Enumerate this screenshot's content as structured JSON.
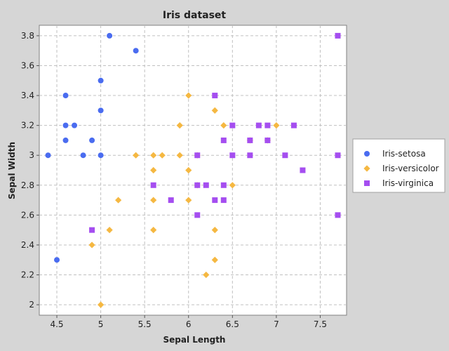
{
  "chart_data": {
    "type": "scatter",
    "title": "Iris dataset",
    "xlabel": "Sepal Length",
    "ylabel": "Sepal Width",
    "xlim": [
      4.3,
      7.8
    ],
    "ylim": [
      1.93,
      3.87
    ],
    "xticks": [
      4.5,
      5.0,
      5.5,
      6.0,
      6.5,
      7.0,
      7.5
    ],
    "xtick_labels": [
      "4.5",
      "5",
      "5.5",
      "6",
      "6.5",
      "7",
      "7.5"
    ],
    "yticks": [
      2.0,
      2.2,
      2.4,
      2.6,
      2.8,
      3.0,
      3.2,
      3.4,
      3.6,
      3.8
    ],
    "ytick_labels": [
      "2",
      "2.2",
      "2.4",
      "2.6",
      "2.8",
      "3",
      "3.2",
      "3.4",
      "3.6",
      "3.8"
    ],
    "grid": true,
    "legend_position": "right",
    "series": [
      {
        "name": "Iris-setosa",
        "marker": "circle",
        "color": "#4a6cf0",
        "points": [
          [
            5.1,
            3.8
          ],
          [
            5.4,
            3.7
          ],
          [
            5.0,
            3.5
          ],
          [
            4.6,
            3.4
          ],
          [
            5.0,
            3.3
          ],
          [
            4.6,
            3.2
          ],
          [
            4.7,
            3.2
          ],
          [
            4.6,
            3.1
          ],
          [
            4.9,
            3.1
          ],
          [
            4.4,
            3.0
          ],
          [
            4.8,
            3.0
          ],
          [
            5.0,
            3.0
          ],
          [
            4.5,
            2.3
          ]
        ]
      },
      {
        "name": "Iris-versicolor",
        "marker": "diamond",
        "color": "#f5b842",
        "points": [
          [
            6.0,
            3.4
          ],
          [
            6.3,
            3.3
          ],
          [
            5.9,
            3.2
          ],
          [
            6.4,
            3.2
          ],
          [
            7.0,
            3.2
          ],
          [
            6.7,
            3.1
          ],
          [
            6.9,
            3.1
          ],
          [
            5.4,
            3.0
          ],
          [
            5.6,
            3.0
          ],
          [
            5.7,
            3.0
          ],
          [
            5.9,
            3.0
          ],
          [
            6.1,
            3.0
          ],
          [
            5.6,
            2.9
          ],
          [
            6.0,
            2.9
          ],
          [
            6.1,
            2.8
          ],
          [
            6.5,
            2.8
          ],
          [
            5.2,
            2.7
          ],
          [
            5.6,
            2.7
          ],
          [
            6.0,
            2.7
          ],
          [
            5.1,
            2.5
          ],
          [
            5.6,
            2.5
          ],
          [
            6.3,
            2.5
          ],
          [
            4.9,
            2.4
          ],
          [
            6.3,
            2.3
          ],
          [
            6.2,
            2.2
          ],
          [
            5.0,
            2.0
          ]
        ]
      },
      {
        "name": "Iris-virginica",
        "marker": "square",
        "color": "#a54ef0",
        "points": [
          [
            7.7,
            3.8
          ],
          [
            6.3,
            3.4
          ],
          [
            6.5,
            3.2
          ],
          [
            6.8,
            3.2
          ],
          [
            6.9,
            3.2
          ],
          [
            7.2,
            3.2
          ],
          [
            6.4,
            3.1
          ],
          [
            6.7,
            3.1
          ],
          [
            6.9,
            3.1
          ],
          [
            6.1,
            3.0
          ],
          [
            6.5,
            3.0
          ],
          [
            6.7,
            3.0
          ],
          [
            7.1,
            3.0
          ],
          [
            7.7,
            3.0
          ],
          [
            7.3,
            2.9
          ],
          [
            5.6,
            2.8
          ],
          [
            6.1,
            2.8
          ],
          [
            6.4,
            2.8
          ],
          [
            6.2,
            2.8
          ],
          [
            5.8,
            2.7
          ],
          [
            6.3,
            2.7
          ],
          [
            6.4,
            2.7
          ],
          [
            6.1,
            2.6
          ],
          [
            7.7,
            2.6
          ],
          [
            4.9,
            2.5
          ]
        ]
      }
    ]
  },
  "colors": {
    "background": "#d6d6d6",
    "plot_background": "#ffffff",
    "grid": "#c0c0c0"
  }
}
